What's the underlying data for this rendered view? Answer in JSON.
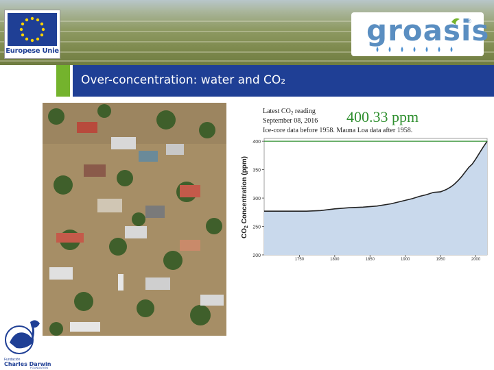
{
  "header": {
    "eu_logo_label": "Europese Unie",
    "groasis_logo_text": "groasis",
    "groasis_registered": "®"
  },
  "slide": {
    "title": "Over-concentration: water and CO₂"
  },
  "colors": {
    "title_bar": "#1f3f95",
    "accent_green": "#74b32d",
    "chart_fill": "#c9d9ec",
    "chart_line": "#222222",
    "reference_line": "#2f8f2f"
  },
  "chart_data": {
    "type": "area",
    "reading_label_line1": "Latest CO",
    "reading_label_sub": "2",
    "reading_label_line1_end": " reading",
    "reading_label_line2": "September 08, 2016",
    "reading_value": "400.33 ppm",
    "subtitle": "Ice-core data before 1958. Mauna Loa data after 1958.",
    "ylabel_prefix": "CO",
    "ylabel_sub": "2",
    "ylabel_suffix": " Concentration (ppm)",
    "ylim": [
      200,
      405
    ],
    "xlim": [
      1700,
      2016
    ],
    "yticks": [
      200,
      250,
      300,
      350,
      400
    ],
    "ytick_labels": [
      "200",
      "250",
      "300",
      "350",
      "400"
    ],
    "xticks": [
      1750,
      1800,
      1850,
      1900,
      1950,
      2000
    ],
    "xtick_labels": [
      "1750",
      "1800",
      "1850",
      "1900",
      "1950",
      "2000"
    ],
    "reference_value": 400,
    "x": [
      1700,
      1720,
      1740,
      1760,
      1780,
      1800,
      1820,
      1840,
      1860,
      1880,
      1900,
      1910,
      1920,
      1930,
      1940,
      1950,
      1958,
      1965,
      1970,
      1975,
      1980,
      1985,
      1990,
      1995,
      2000,
      2005,
      2010,
      2016
    ],
    "values": [
      277,
      277,
      277,
      277,
      278,
      281,
      283,
      284,
      286,
      290,
      296,
      299,
      303,
      306,
      310,
      311,
      315,
      320,
      325,
      331,
      338,
      346,
      354,
      360,
      369,
      379,
      389,
      400
    ]
  },
  "darwin_logo": {
    "line1": "Fundación",
    "line2": "Charles Darwin",
    "line3": "FOUNDATION"
  }
}
